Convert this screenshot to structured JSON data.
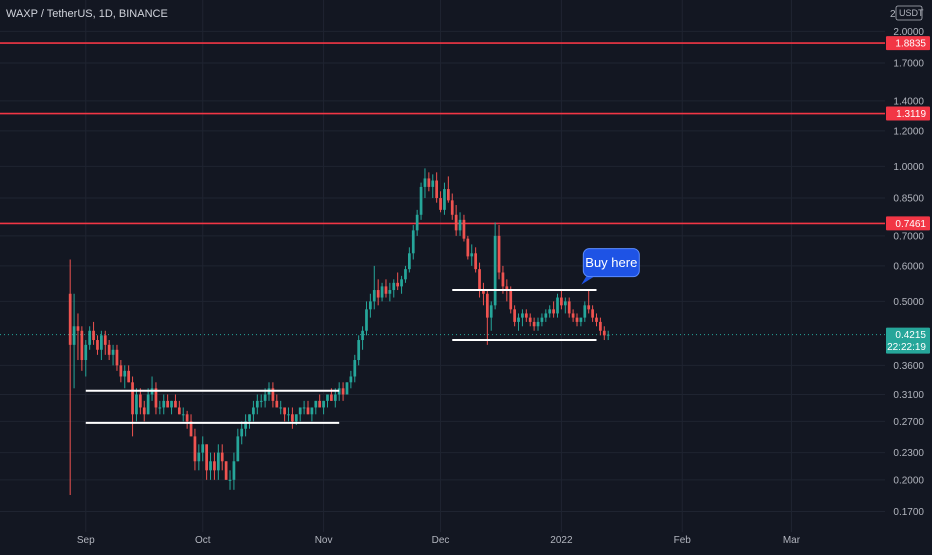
{
  "header": {
    "symbol_line": "WAXP / TetherUS, 1D, BINANCE",
    "log_scale_label": "2",
    "currency_badge": "USDT"
  },
  "colors": {
    "background": "#131722",
    "grid": "#1f2431",
    "up": "#26a69a",
    "down": "#ef5350",
    "resistance_line": "#f23645",
    "level_line": "#ffffff",
    "current_price": "#26a69a",
    "callout": "#1e53e5",
    "axis_text": "#b2b5be"
  },
  "chart_data": {
    "type": "candlestick",
    "title": "WAXP / TetherUS, 1D, BINANCE",
    "y_scale": "log",
    "y_unit": "USDT",
    "y_ticks": [
      "2.0000",
      "1.7000",
      "1.4000",
      "1.2000",
      "1.0000",
      "0.8500",
      "0.7000",
      "0.6000",
      "0.5000",
      "0.3600",
      "0.3100",
      "0.2700",
      "0.2300",
      "0.2000",
      "0.1700"
    ],
    "x_ticks": [
      "Sep",
      "Oct",
      "Nov",
      "Dec",
      "2022",
      "Feb",
      "Mar"
    ],
    "x_range": [
      "2021-08-10",
      "2022-03-25"
    ],
    "y_range": [
      0.153,
      2.35
    ],
    "grid": true,
    "horizontal_levels": [
      {
        "label": "1.8835",
        "price": 1.8835
      },
      {
        "label": "1.3119",
        "price": 1.3119
      },
      {
        "label": "0.7461",
        "price": 0.7461
      }
    ],
    "current_price": {
      "label": "0.4215",
      "price": 0.4215,
      "countdown": "22:22:19"
    },
    "annotations": [
      {
        "text": "Buy here",
        "date": "2022-01-02",
        "price": 0.61
      }
    ],
    "range_lines": [
      {
        "price": 0.316,
        "from": "2021-09-01",
        "to": "2021-11-05"
      },
      {
        "price": 0.268,
        "from": "2021-09-01",
        "to": "2021-11-05"
      },
      {
        "price": 0.53,
        "from": "2021-12-04",
        "to": "2022-01-10"
      },
      {
        "price": 0.41,
        "from": "2021-12-04",
        "to": "2022-01-10"
      }
    ],
    "candles_start_date": "2021-08-28",
    "candles": [
      [
        0.52,
        0.62,
        0.185,
        0.4
      ],
      [
        0.4,
        0.52,
        0.32,
        0.44
      ],
      [
        0.44,
        0.47,
        0.37,
        0.43
      ],
      [
        0.43,
        0.44,
        0.35,
        0.37
      ],
      [
        0.37,
        0.41,
        0.34,
        0.4
      ],
      [
        0.4,
        0.44,
        0.39,
        0.43
      ],
      [
        0.43,
        0.45,
        0.4,
        0.41
      ],
      [
        0.41,
        0.42,
        0.38,
        0.39
      ],
      [
        0.39,
        0.43,
        0.37,
        0.42
      ],
      [
        0.42,
        0.43,
        0.38,
        0.4
      ],
      [
        0.4,
        0.41,
        0.37,
        0.38
      ],
      [
        0.38,
        0.4,
        0.36,
        0.39
      ],
      [
        0.39,
        0.4,
        0.35,
        0.36
      ],
      [
        0.36,
        0.37,
        0.33,
        0.34
      ],
      [
        0.34,
        0.36,
        0.32,
        0.35
      ],
      [
        0.35,
        0.36,
        0.33,
        0.33
      ],
      [
        0.33,
        0.34,
        0.25,
        0.28
      ],
      [
        0.28,
        0.32,
        0.27,
        0.31
      ],
      [
        0.31,
        0.32,
        0.28,
        0.29
      ],
      [
        0.29,
        0.3,
        0.27,
        0.28
      ],
      [
        0.28,
        0.32,
        0.28,
        0.31
      ],
      [
        0.31,
        0.34,
        0.3,
        0.32
      ],
      [
        0.32,
        0.33,
        0.28,
        0.29
      ],
      [
        0.29,
        0.3,
        0.28,
        0.29
      ],
      [
        0.29,
        0.31,
        0.28,
        0.3
      ],
      [
        0.3,
        0.31,
        0.29,
        0.29
      ],
      [
        0.29,
        0.3,
        0.28,
        0.3
      ],
      [
        0.3,
        0.31,
        0.29,
        0.29
      ],
      [
        0.29,
        0.3,
        0.28,
        0.28
      ],
      [
        0.28,
        0.29,
        0.27,
        0.28
      ],
      [
        0.28,
        0.285,
        0.26,
        0.27
      ],
      [
        0.27,
        0.28,
        0.25,
        0.25
      ],
      [
        0.25,
        0.26,
        0.21,
        0.22
      ],
      [
        0.22,
        0.24,
        0.21,
        0.23
      ],
      [
        0.23,
        0.25,
        0.22,
        0.24
      ],
      [
        0.24,
        0.24,
        0.2,
        0.21
      ],
      [
        0.21,
        0.23,
        0.2,
        0.22
      ],
      [
        0.22,
        0.23,
        0.2,
        0.21
      ],
      [
        0.21,
        0.24,
        0.2,
        0.23
      ],
      [
        0.23,
        0.24,
        0.21,
        0.22
      ],
      [
        0.22,
        0.22,
        0.2,
        0.2
      ],
      [
        0.2,
        0.21,
        0.19,
        0.2
      ],
      [
        0.2,
        0.23,
        0.19,
        0.22
      ],
      [
        0.22,
        0.26,
        0.22,
        0.25
      ],
      [
        0.25,
        0.27,
        0.24,
        0.26
      ],
      [
        0.26,
        0.28,
        0.25,
        0.27
      ],
      [
        0.27,
        0.28,
        0.26,
        0.28
      ],
      [
        0.28,
        0.3,
        0.27,
        0.29
      ],
      [
        0.29,
        0.31,
        0.28,
        0.3
      ],
      [
        0.3,
        0.31,
        0.29,
        0.3
      ],
      [
        0.3,
        0.32,
        0.29,
        0.31
      ],
      [
        0.31,
        0.33,
        0.3,
        0.32
      ],
      [
        0.32,
        0.33,
        0.29,
        0.3
      ],
      [
        0.3,
        0.31,
        0.29,
        0.29
      ],
      [
        0.29,
        0.3,
        0.28,
        0.29
      ],
      [
        0.29,
        0.29,
        0.27,
        0.28
      ],
      [
        0.28,
        0.29,
        0.27,
        0.28
      ],
      [
        0.28,
        0.29,
        0.26,
        0.27
      ],
      [
        0.27,
        0.28,
        0.265,
        0.28
      ],
      [
        0.28,
        0.29,
        0.27,
        0.29
      ],
      [
        0.29,
        0.3,
        0.28,
        0.29
      ],
      [
        0.29,
        0.3,
        0.28,
        0.28
      ],
      [
        0.28,
        0.29,
        0.27,
        0.29
      ],
      [
        0.29,
        0.3,
        0.28,
        0.3
      ],
      [
        0.3,
        0.31,
        0.29,
        0.29
      ],
      [
        0.29,
        0.3,
        0.28,
        0.3
      ],
      [
        0.3,
        0.31,
        0.29,
        0.31
      ],
      [
        0.31,
        0.32,
        0.3,
        0.3
      ],
      [
        0.3,
        0.32,
        0.29,
        0.31
      ],
      [
        0.31,
        0.33,
        0.3,
        0.32
      ],
      [
        0.32,
        0.33,
        0.3,
        0.31
      ],
      [
        0.31,
        0.33,
        0.31,
        0.33
      ],
      [
        0.33,
        0.35,
        0.32,
        0.34
      ],
      [
        0.34,
        0.38,
        0.33,
        0.37
      ],
      [
        0.37,
        0.42,
        0.36,
        0.41
      ],
      [
        0.41,
        0.44,
        0.39,
        0.43
      ],
      [
        0.43,
        0.5,
        0.42,
        0.48
      ],
      [
        0.48,
        0.52,
        0.46,
        0.5
      ],
      [
        0.5,
        0.6,
        0.48,
        0.53
      ],
      [
        0.53,
        0.56,
        0.49,
        0.51
      ],
      [
        0.51,
        0.55,
        0.5,
        0.54
      ],
      [
        0.54,
        0.56,
        0.51,
        0.52
      ],
      [
        0.52,
        0.55,
        0.5,
        0.53
      ],
      [
        0.53,
        0.56,
        0.51,
        0.55
      ],
      [
        0.55,
        0.58,
        0.53,
        0.54
      ],
      [
        0.54,
        0.57,
        0.52,
        0.56
      ],
      [
        0.56,
        0.6,
        0.55,
        0.59
      ],
      [
        0.59,
        0.66,
        0.58,
        0.64
      ],
      [
        0.64,
        0.74,
        0.62,
        0.72
      ],
      [
        0.72,
        0.8,
        0.7,
        0.78
      ],
      [
        0.78,
        0.92,
        0.76,
        0.9
      ],
      [
        0.9,
        0.99,
        0.85,
        0.94
      ],
      [
        0.94,
        0.97,
        0.88,
        0.9
      ],
      [
        0.9,
        0.96,
        0.85,
        0.93
      ],
      [
        0.93,
        0.97,
        0.83,
        0.85
      ],
      [
        0.85,
        0.88,
        0.79,
        0.8
      ],
      [
        0.8,
        0.92,
        0.78,
        0.89
      ],
      [
        0.89,
        0.95,
        0.83,
        0.84
      ],
      [
        0.84,
        0.87,
        0.76,
        0.78
      ],
      [
        0.78,
        0.82,
        0.7,
        0.72
      ],
      [
        0.72,
        0.79,
        0.7,
        0.76
      ],
      [
        0.76,
        0.78,
        0.68,
        0.69
      ],
      [
        0.69,
        0.7,
        0.62,
        0.63
      ],
      [
        0.63,
        0.67,
        0.6,
        0.64
      ],
      [
        0.64,
        0.66,
        0.58,
        0.59
      ],
      [
        0.59,
        0.61,
        0.51,
        0.53
      ],
      [
        0.53,
        0.55,
        0.49,
        0.52
      ],
      [
        0.52,
        0.53,
        0.4,
        0.46
      ],
      [
        0.46,
        0.5,
        0.43,
        0.49
      ],
      [
        0.49,
        0.75,
        0.48,
        0.7
      ],
      [
        0.7,
        0.74,
        0.56,
        0.58
      ],
      [
        0.58,
        0.6,
        0.52,
        0.54
      ],
      [
        0.54,
        0.56,
        0.5,
        0.53
      ],
      [
        0.53,
        0.54,
        0.47,
        0.48
      ],
      [
        0.48,
        0.49,
        0.44,
        0.45
      ],
      [
        0.45,
        0.47,
        0.43,
        0.46
      ],
      [
        0.46,
        0.48,
        0.44,
        0.47
      ],
      [
        0.47,
        0.48,
        0.45,
        0.46
      ],
      [
        0.46,
        0.47,
        0.44,
        0.45
      ],
      [
        0.45,
        0.46,
        0.43,
        0.44
      ],
      [
        0.44,
        0.46,
        0.43,
        0.45
      ],
      [
        0.45,
        0.47,
        0.44,
        0.46
      ],
      [
        0.46,
        0.48,
        0.45,
        0.47
      ],
      [
        0.47,
        0.49,
        0.46,
        0.48
      ],
      [
        0.48,
        0.5,
        0.46,
        0.47
      ],
      [
        0.47,
        0.52,
        0.46,
        0.51
      ],
      [
        0.51,
        0.53,
        0.48,
        0.49
      ],
      [
        0.49,
        0.51,
        0.47,
        0.5
      ],
      [
        0.5,
        0.51,
        0.46,
        0.47
      ],
      [
        0.47,
        0.48,
        0.45,
        0.46
      ],
      [
        0.46,
        0.47,
        0.44,
        0.45
      ],
      [
        0.45,
        0.46,
        0.44,
        0.46
      ],
      [
        0.46,
        0.5,
        0.45,
        0.49
      ],
      [
        0.49,
        0.53,
        0.47,
        0.48
      ],
      [
        0.48,
        0.49,
        0.45,
        0.46
      ],
      [
        0.46,
        0.47,
        0.44,
        0.45
      ],
      [
        0.45,
        0.46,
        0.42,
        0.43
      ],
      [
        0.43,
        0.44,
        0.41,
        0.42
      ],
      [
        0.42,
        0.43,
        0.41,
        0.4215
      ]
    ]
  }
}
